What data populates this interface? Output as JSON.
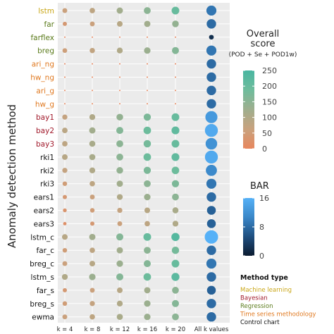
{
  "chart_data": {
    "type": "scatter",
    "ylabel": "Anomaly detection method",
    "columns": [
      "k = 4",
      "k = 8",
      "k = 12",
      "k = 16",
      "k = 20",
      "All k values"
    ],
    "methods": [
      {
        "name": "lstm",
        "type": "Machine learning"
      },
      {
        "name": "far",
        "type": "Regression"
      },
      {
        "name": "farflex",
        "type": "Regression"
      },
      {
        "name": "breg",
        "type": "Regression"
      },
      {
        "name": "ari_ng",
        "type": "Time series methodology"
      },
      {
        "name": "hw_ng",
        "type": "Time series methodology"
      },
      {
        "name": "ari_g",
        "type": "Time series methodology"
      },
      {
        "name": "hw_g",
        "type": "Time series methodology"
      },
      {
        "name": "bay1",
        "type": "Bayesian"
      },
      {
        "name": "bay2",
        "type": "Bayesian"
      },
      {
        "name": "bay3",
        "type": "Bayesian"
      },
      {
        "name": "rki1",
        "type": "Control chart"
      },
      {
        "name": "rki2",
        "type": "Control chart"
      },
      {
        "name": "rki3",
        "type": "Control chart"
      },
      {
        "name": "ears1",
        "type": "Control chart"
      },
      {
        "name": "ears2",
        "type": "Control chart"
      },
      {
        "name": "ears3",
        "type": "Control chart"
      },
      {
        "name": "lstm_c",
        "type": "Control chart"
      },
      {
        "name": "far_c",
        "type": "Control chart"
      },
      {
        "name": "breg_c",
        "type": "Control chart"
      },
      {
        "name": "lstm_s",
        "type": "Control chart"
      },
      {
        "name": "far_s",
        "type": "Control chart"
      },
      {
        "name": "breg_s",
        "type": "Control chart"
      },
      {
        "name": "ewma",
        "type": "Control chart"
      }
    ],
    "scores": [
      [
        60,
        80,
        120,
        150,
        200
      ],
      [
        40,
        60,
        90,
        120,
        140
      ],
      [
        0,
        0,
        0,
        0,
        0
      ],
      [
        55,
        75,
        100,
        130,
        160
      ],
      [
        0,
        0,
        0,
        0,
        0
      ],
      [
        0,
        0,
        0,
        0,
        0
      ],
      [
        0,
        0,
        0,
        0,
        0
      ],
      [
        0,
        0,
        0,
        0,
        0
      ],
      [
        70,
        100,
        140,
        170,
        200
      ],
      [
        85,
        120,
        160,
        190,
        210
      ],
      [
        80,
        110,
        150,
        180,
        200
      ],
      [
        90,
        110,
        150,
        190,
        210
      ],
      [
        70,
        100,
        140,
        170,
        190
      ],
      [
        50,
        80,
        120,
        150,
        170
      ],
      [
        40,
        60,
        100,
        130,
        150
      ],
      [
        30,
        50,
        70,
        90,
        110
      ],
      [
        20,
        40,
        60,
        80,
        100
      ],
      [
        90,
        120,
        160,
        200,
        230
      ],
      [
        50,
        80,
        120,
        150,
        180
      ],
      [
        60,
        90,
        130,
        160,
        200
      ],
      [
        100,
        130,
        160,
        190,
        220
      ],
      [
        40,
        60,
        90,
        120,
        150
      ],
      [
        50,
        70,
        100,
        130,
        160
      ],
      [
        60,
        80,
        110,
        130,
        150
      ]
    ],
    "bar": [
      9,
      8,
      2,
      9,
      8,
      8,
      8,
      8,
      13,
      15,
      12,
      15,
      11,
      9,
      8,
      7,
      7,
      16,
      8,
      9,
      8,
      7,
      8,
      8
    ],
    "score_legend": {
      "title_line1": "Overall",
      "title_line2": "score",
      "title_line3": "(POD + Se + POD1w)",
      "range": [
        0,
        250
      ],
      "ticks": [
        "250",
        "200",
        "150",
        "100",
        "50",
        "0"
      ],
      "tick_values": [
        250,
        200,
        150,
        100,
        50,
        0
      ],
      "colors": [
        "#e8875d",
        "#c9a27e",
        "#9fae8e",
        "#6fbc9c",
        "#49b6a1"
      ]
    },
    "bar_legend": {
      "title": "BAR",
      "range": [
        0,
        16
      ],
      "ticks": [
        "16",
        "8",
        "0"
      ],
      "tick_values": [
        16,
        8,
        0
      ],
      "colors": [
        "#0c1b30",
        "#1f4f80",
        "#3a87c8",
        "#56b1f7"
      ]
    },
    "type_legend": {
      "title": "Method type",
      "items": [
        {
          "label": "Machine learning",
          "color": "#c9a616"
        },
        {
          "label": "Bayesian",
          "color": "#a1192b"
        },
        {
          "label": "Regression",
          "color": "#5a7a1a"
        },
        {
          "label": "Time series methodology",
          "color": "#e07a22"
        },
        {
          "label": "Control chart",
          "color": "#111111"
        }
      ]
    },
    "panel_background": "#ebebeb",
    "grid": true
  }
}
